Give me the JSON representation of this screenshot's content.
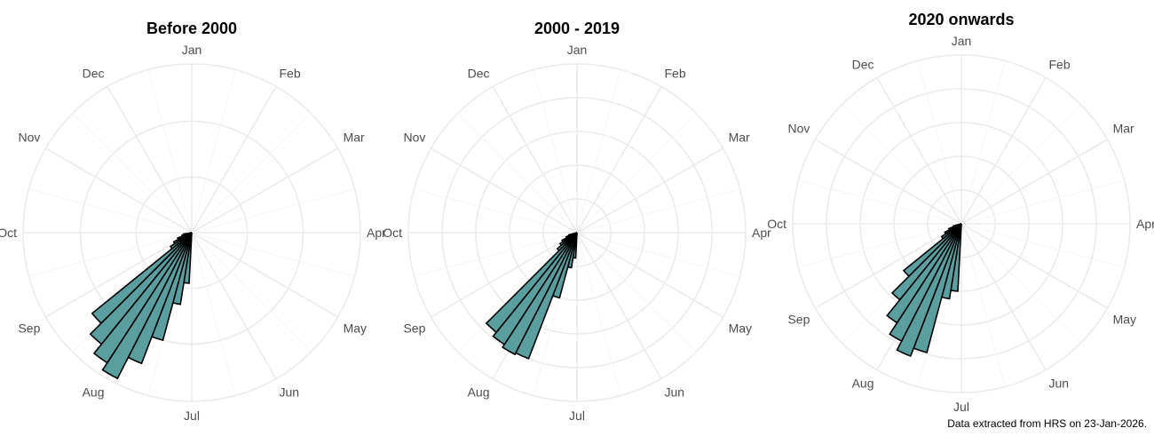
{
  "caption": "Data extracted from HRS on 23-Jan-2026.",
  "colors": {
    "bar_fill": "#5b9ea0",
    "bar_stroke": "#000000",
    "grid": "#ebebeb",
    "tick_label": "#4d4d4d"
  },
  "chart_data": [
    {
      "type": "bar",
      "polar": true,
      "title": "Before 2000",
      "month_labels": [
        "Jan",
        "Feb",
        "Mar",
        "Apr",
        "May",
        "Jun",
        "Jul",
        "Aug",
        "Sep",
        "Oct",
        "Nov",
        "Dec"
      ],
      "angles_deg": [
        0,
        30,
        60,
        90,
        120,
        150,
        180,
        210,
        240,
        270,
        300,
        330
      ],
      "bins": [
        {
          "angle": 186,
          "value": 0.3
        },
        {
          "angle": 192,
          "value": 0.43
        },
        {
          "angle": 198,
          "value": 0.66
        },
        {
          "angle": 204,
          "value": 0.83
        },
        {
          "angle": 210,
          "value": 0.97
        },
        {
          "angle": 216,
          "value": 0.92
        },
        {
          "angle": 222,
          "value": 0.85
        },
        {
          "angle": 228,
          "value": 0.76
        },
        {
          "angle": 234,
          "value": 0.15
        },
        {
          "angle": 240,
          "value": 0.12
        },
        {
          "angle": 246,
          "value": 0.09
        },
        {
          "angle": 252,
          "value": 0.06
        },
        {
          "angle": 258,
          "value": 0.05
        }
      ],
      "grid_values": [
        0.33,
        0.66,
        1.0
      ]
    },
    {
      "type": "bar",
      "polar": true,
      "title": "2000 - 2019",
      "month_labels": [
        "Jan",
        "Feb",
        "Mar",
        "Apr",
        "May",
        "Jun",
        "Jul",
        "Aug",
        "Sep",
        "Oct",
        "Nov",
        "Dec"
      ],
      "angles_deg": [
        0,
        30,
        60,
        90,
        120,
        150,
        180,
        210,
        240,
        270,
        300,
        330
      ],
      "bins": [
        {
          "angle": 186,
          "value": 0.15
        },
        {
          "angle": 192,
          "value": 0.21
        },
        {
          "angle": 198,
          "value": 0.4
        },
        {
          "angle": 204,
          "value": 0.8
        },
        {
          "angle": 210,
          "value": 0.81
        },
        {
          "angle": 216,
          "value": 0.79
        },
        {
          "angle": 222,
          "value": 0.76
        },
        {
          "angle": 228,
          "value": 0.15
        },
        {
          "angle": 234,
          "value": 0.12
        },
        {
          "angle": 240,
          "value": 0.1
        },
        {
          "angle": 246,
          "value": 0.07
        },
        {
          "angle": 252,
          "value": 0.05
        }
      ],
      "grid_values": [
        0.2,
        0.4,
        0.6,
        0.8,
        1.0
      ]
    },
    {
      "type": "bar",
      "polar": true,
      "title": "2020 onwards",
      "month_labels": [
        "Jan",
        "Feb",
        "Mar",
        "Apr",
        "May",
        "Jun",
        "Jul",
        "Aug",
        "Sep",
        "Oct",
        "Nov",
        "Dec"
      ],
      "angles_deg": [
        0,
        30,
        60,
        90,
        120,
        150,
        180,
        210,
        240,
        270,
        300,
        330
      ],
      "bins": [
        {
          "angle": 186,
          "value": 0.4
        },
        {
          "angle": 192,
          "value": 0.45
        },
        {
          "angle": 198,
          "value": 0.79
        },
        {
          "angle": 204,
          "value": 0.84
        },
        {
          "angle": 210,
          "value": 0.78
        },
        {
          "angle": 216,
          "value": 0.7
        },
        {
          "angle": 222,
          "value": 0.58
        },
        {
          "angle": 228,
          "value": 0.44
        },
        {
          "angle": 234,
          "value": 0.14
        },
        {
          "angle": 240,
          "value": 0.11
        },
        {
          "angle": 246,
          "value": 0.08
        },
        {
          "angle": 252,
          "value": 0.05
        }
      ],
      "grid_values": [
        0.2,
        0.4,
        0.6,
        0.8,
        1.0
      ]
    }
  ]
}
